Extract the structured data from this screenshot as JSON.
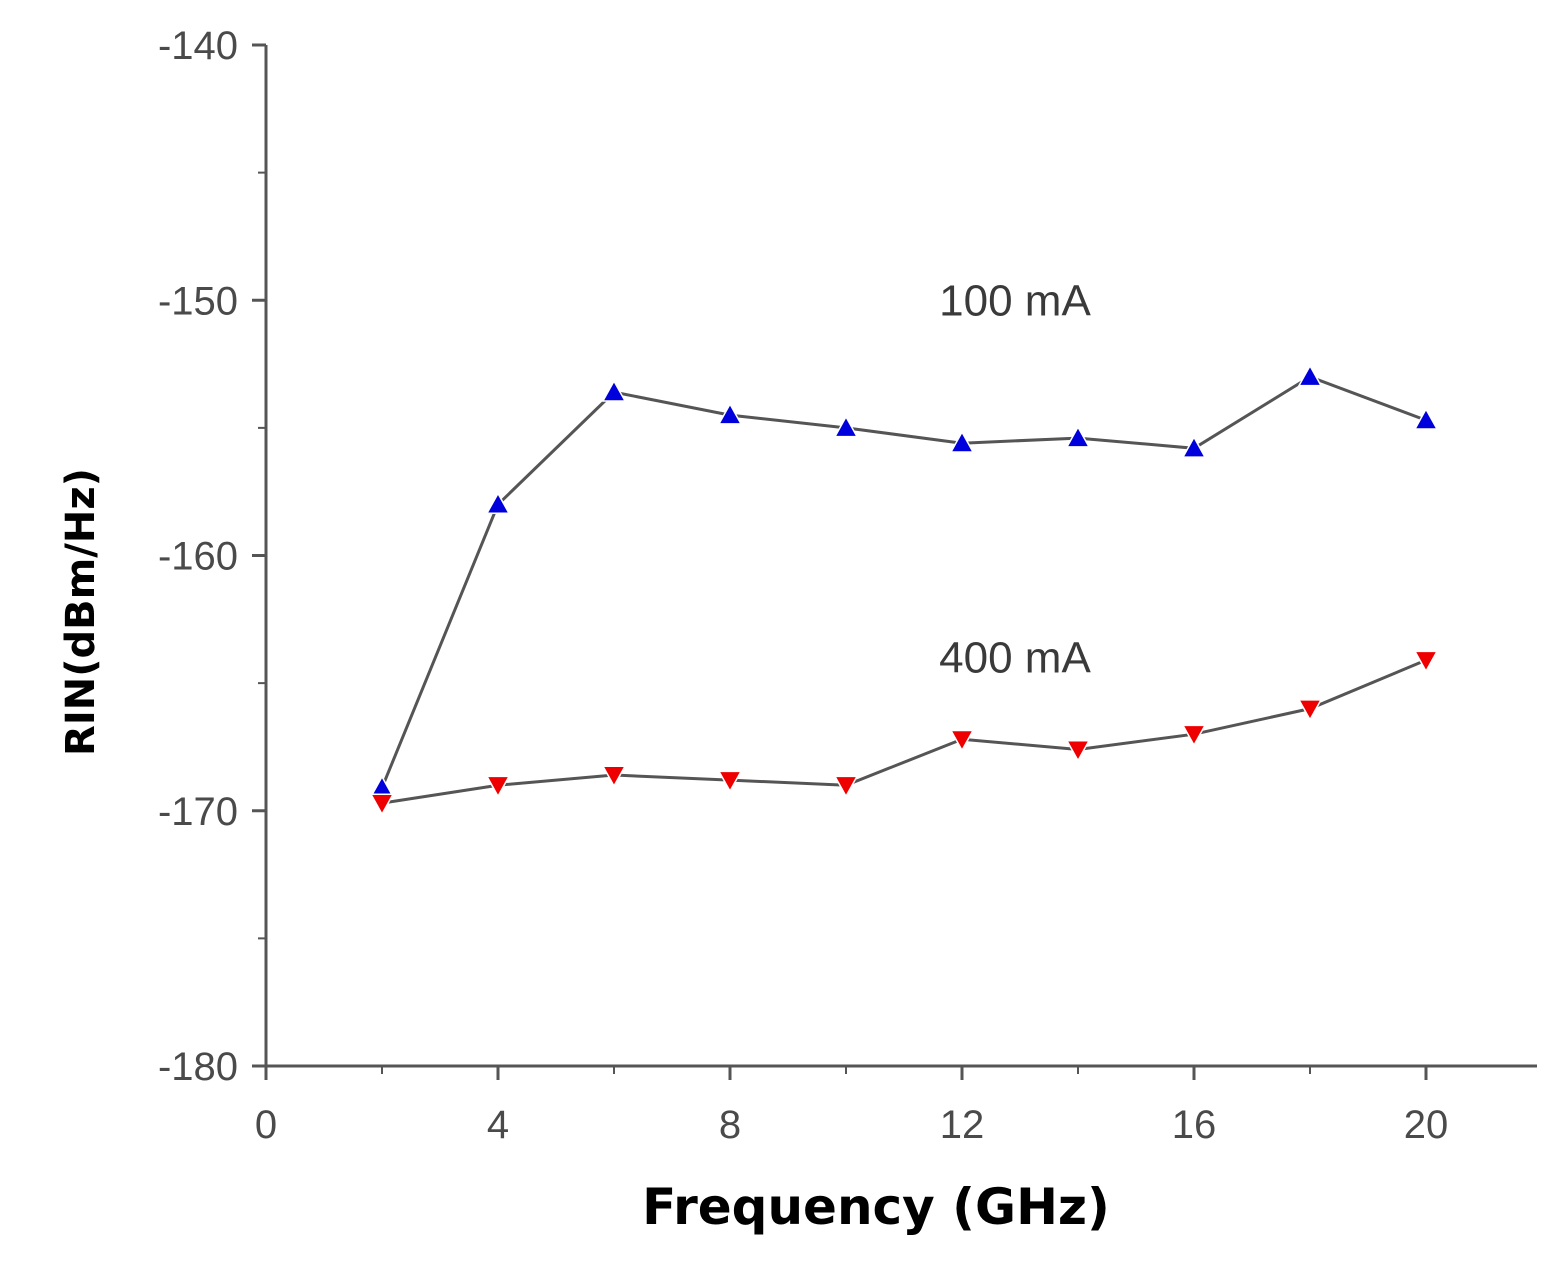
{
  "chart_data": {
    "type": "line",
    "xlabel": "Frequency (GHz)",
    "ylabel": "RIN(dBm/Hz)",
    "xlim": [
      0,
      22
    ],
    "ylim": [
      -180,
      -140
    ],
    "xticks": [
      0,
      4,
      8,
      12,
      16,
      20
    ],
    "yticks": [
      -180,
      -170,
      -160,
      -150,
      -140
    ],
    "grid": false,
    "annotations": [
      {
        "text": "100 mA",
        "x": 12.5,
        "y": -150
      },
      {
        "text": "400 mA",
        "x": 12.5,
        "y": -164
      }
    ],
    "series": [
      {
        "marker": "triangle-up",
        "color": "#0000dd",
        "line_color": "#555555",
        "x": [
          2,
          4,
          6,
          8,
          10,
          12,
          14,
          16,
          18,
          20
        ],
        "y": [
          -169.1,
          -158.0,
          -153.6,
          -154.5,
          -155.0,
          -155.6,
          -155.4,
          -155.8,
          -153.0,
          -154.7
        ]
      },
      {
        "marker": "triangle-down",
        "color": "#ee0000",
        "line_color": "#555555",
        "x": [
          2,
          4,
          6,
          8,
          10,
          12,
          14,
          16,
          18,
          20
        ],
        "y": [
          -169.7,
          -169.0,
          -168.6,
          -168.8,
          -169.0,
          -167.2,
          -167.6,
          -167.0,
          -166.0,
          -164.1
        ]
      }
    ]
  }
}
